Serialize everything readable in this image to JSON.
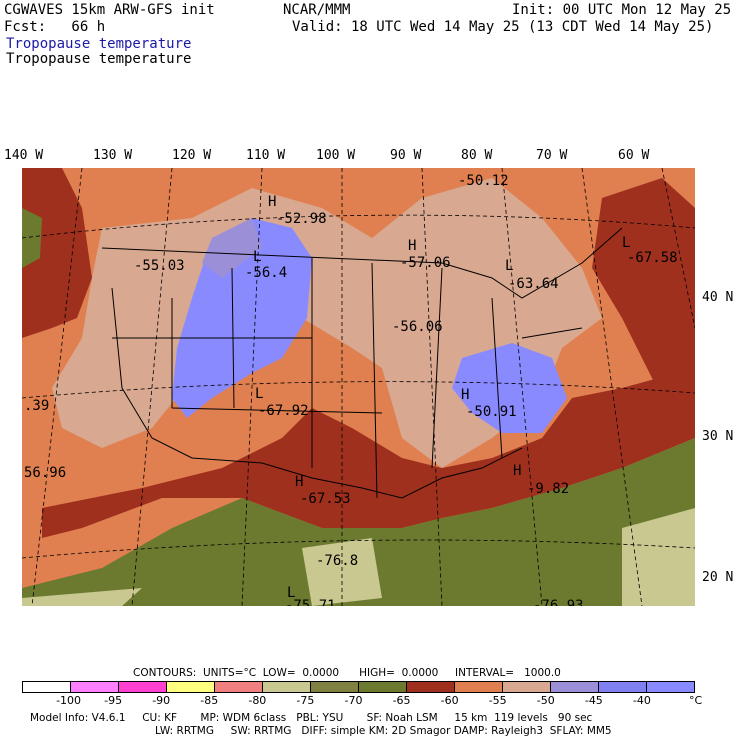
{
  "header": {
    "line1_left": "CGWAVES 15km ARW-GFS init",
    "line1_mid": "NCAR/MMM",
    "line1_right": "Init: 00 UTC Mon 12 May 25",
    "line2_left": "Fcst:   66 h",
    "line2_right": "Valid: 18 UTC Wed 14 May 25 (13 CDT Wed 14 May 25)",
    "field_title_blue": "Tropopause temperature",
    "field_title_black": "Tropopause temperature",
    "title_blue_color": "#1a1aa6"
  },
  "longitudes": [
    "140 W",
    "130 W",
    "120 W",
    "110 W",
    "100 W",
    "90 W",
    "80 W",
    "70 W",
    "60 W"
  ],
  "latitudes": [
    "40 N",
    "30 N",
    "20 N"
  ],
  "map_labels": [
    {
      "text": "-50.12"
    },
    {
      "text": "H"
    },
    {
      "text": "-52.98"
    },
    {
      "text": "-55.03"
    },
    {
      "text": "L"
    },
    {
      "text": "-56.4"
    },
    {
      "text": "H"
    },
    {
      "text": "-57.06"
    },
    {
      "text": "L"
    },
    {
      "text": "-63.64"
    },
    {
      "text": "L"
    },
    {
      "text": "-67.58"
    },
    {
      "text": "-56.06"
    },
    {
      "text": "L"
    },
    {
      "text": "-67.92"
    },
    {
      "text": "H"
    },
    {
      "text": "-50.91"
    },
    {
      "text": ".39"
    },
    {
      "text": "56.96"
    },
    {
      "text": "H"
    },
    {
      "text": "-67.53"
    },
    {
      "text": "H"
    },
    {
      "text": "-9.82"
    },
    {
      "text": "-76.8"
    },
    {
      "text": "L"
    },
    {
      "text": "-75.71"
    },
    {
      "text": "-76.93"
    }
  ],
  "contours_line": "CONTOURS:  UNITS=°C  LOW=  0.0000      HIGH=  0.0000     INTERVAL=   1000.0",
  "colorbar": {
    "colors": [
      "#ffffff",
      "#ff80ff",
      "#ff40d0",
      "#ffff80",
      "#f08080",
      "#c8c890",
      "#808040",
      "#6b7a2e",
      "#a0301e",
      "#e08050",
      "#d8a890",
      "#9b8fd8",
      "#8080f0",
      "#8a8aff"
    ],
    "ticks": [
      "-100",
      "-95",
      "-90",
      "-85",
      "-80",
      "-75",
      "-70",
      "-65",
      "-60",
      "-55",
      "-50",
      "-45",
      "-40",
      "°C"
    ]
  },
  "footer": {
    "line1": "Model Info: V4.6.1     CU: KF       MP: WDM 6class   PBL: YSU       SF: Noah LSM     15 km  119 levels   90 sec",
    "line2": "LW: RRTMG     SW: RRTMG   DIFF: simple KM: 2D Smagor DAMP: Rayleigh3  SFLAY: MM5"
  },
  "colors": {
    "darkred": "#a0301e",
    "orange": "#e08050",
    "pink": "#d8a890",
    "blue": "#8a8aff",
    "olive": "#6b7a2e",
    "tan": "#c8c890"
  }
}
